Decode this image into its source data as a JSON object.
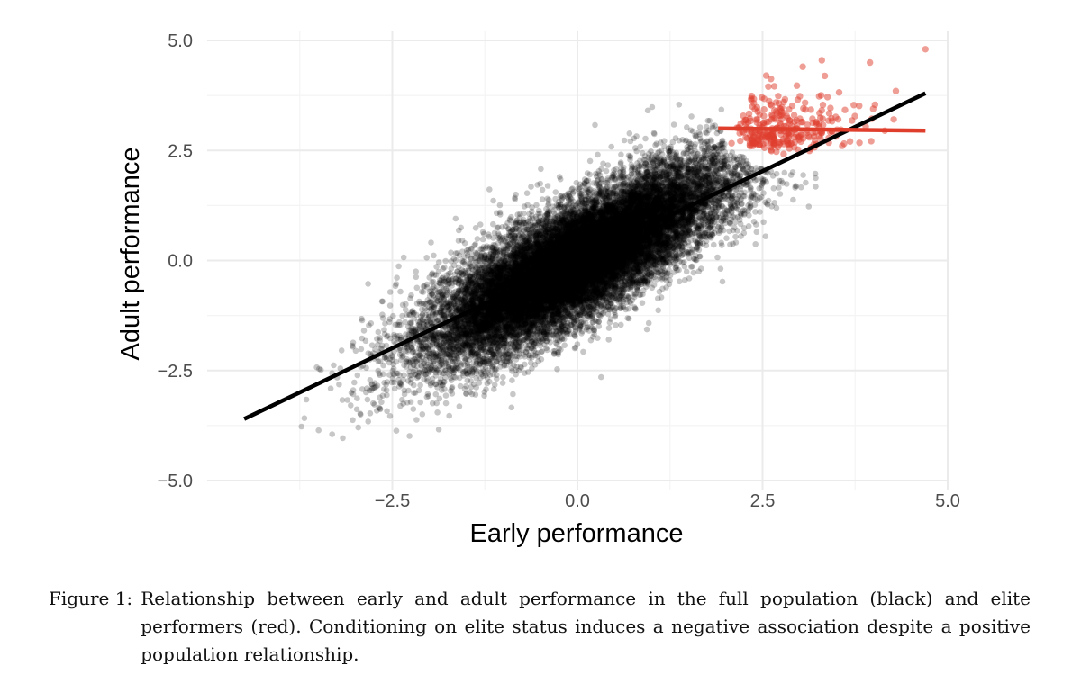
{
  "chart_data": {
    "type": "scatter",
    "xlabel": "Early performance",
    "ylabel": "Adult performance",
    "xlim": [
      -5,
      5
    ],
    "ylim": [
      -5,
      5
    ],
    "x_ticks": [
      {
        "value": -2.5,
        "label": "−2.5"
      },
      {
        "value": 0.0,
        "label": "0.0"
      },
      {
        "value": 2.5,
        "label": "2.5"
      },
      {
        "value": 5.0,
        "label": "5.0"
      }
    ],
    "y_ticks": [
      {
        "value": -5.0,
        "label": "−5.0"
      },
      {
        "value": -2.5,
        "label": "−2.5"
      },
      {
        "value": 0.0,
        "label": "0.0"
      },
      {
        "value": 2.5,
        "label": "2.5"
      },
      {
        "value": 5.0,
        "label": "5.0"
      }
    ],
    "grid": true,
    "series": [
      {
        "name": "full population",
        "color": "#000000",
        "point_alpha": 0.22,
        "n_points_approx": 20000,
        "x_mean": 0.0,
        "x_sd": 1.0,
        "y_mean": 0.0,
        "y_sd": 1.1,
        "correlation": 0.8,
        "fit_line": {
          "x": [
            -4.5,
            4.7
          ],
          "y": [
            -3.6,
            3.8
          ],
          "color": "#000000"
        }
      },
      {
        "name": "elite performers",
        "color": "#e03e2d",
        "point_alpha": 0.5,
        "n_points_approx": 300,
        "selection": "points in the upper tail of the joint distribution",
        "x_range": [
          1.9,
          4.7
        ],
        "y_range": [
          2.0,
          4.8
        ],
        "fit_line": {
          "x": [
            1.9,
            4.7
          ],
          "y": [
            3.0,
            2.95
          ],
          "color": "#e03e2d"
        }
      }
    ]
  },
  "caption": {
    "label": "Figure 1:",
    "text": "Relationship between early and adult performance in the full population (black) and elite performers (red). Conditioning on elite status induces a negative association despite a positive population relationship."
  }
}
